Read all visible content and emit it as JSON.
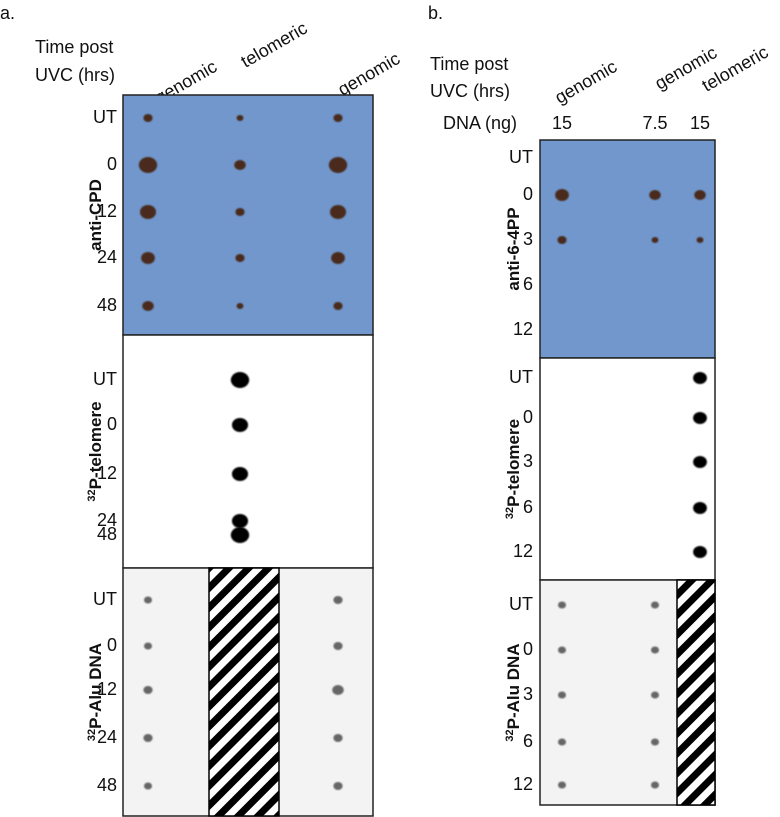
{
  "panel_a": {
    "label": "a.",
    "time_header": [
      "Time post",
      "UVC (hrs)"
    ],
    "columns": [
      "genomic",
      "telomeric",
      "genomic"
    ],
    "blots": [
      {
        "label": "anti-CPD",
        "rows": [
          "UT",
          0,
          12,
          24,
          48
        ]
      },
      {
        "label_sup": "32",
        "label": "P-telomere",
        "rows": [
          "UT",
          0,
          12,
          24,
          48
        ]
      },
      {
        "label_sup": "32",
        "label": "P-Alu DNA",
        "rows": [
          "UT",
          0,
          12,
          24,
          48
        ]
      }
    ]
  },
  "panel_b": {
    "label": "b.",
    "time_header": [
      "Time post",
      "UVC (hrs)"
    ],
    "columns": [
      "genomic",
      "genomic",
      "telomeric"
    ],
    "dna_label": "DNA (ng)",
    "dna_amounts": [
      15,
      7.5,
      15
    ],
    "blots": [
      {
        "label": "anti-6-4PP",
        "rows": [
          "UT",
          0,
          3,
          6,
          12
        ]
      },
      {
        "label_sup": "32",
        "label": "P-telomere",
        "rows": [
          "UT",
          0,
          3,
          6,
          12
        ]
      },
      {
        "label_sup": "32",
        "label": "P-Alu DNA",
        "rows": [
          "UT",
          0,
          3,
          6,
          12
        ]
      }
    ]
  }
}
